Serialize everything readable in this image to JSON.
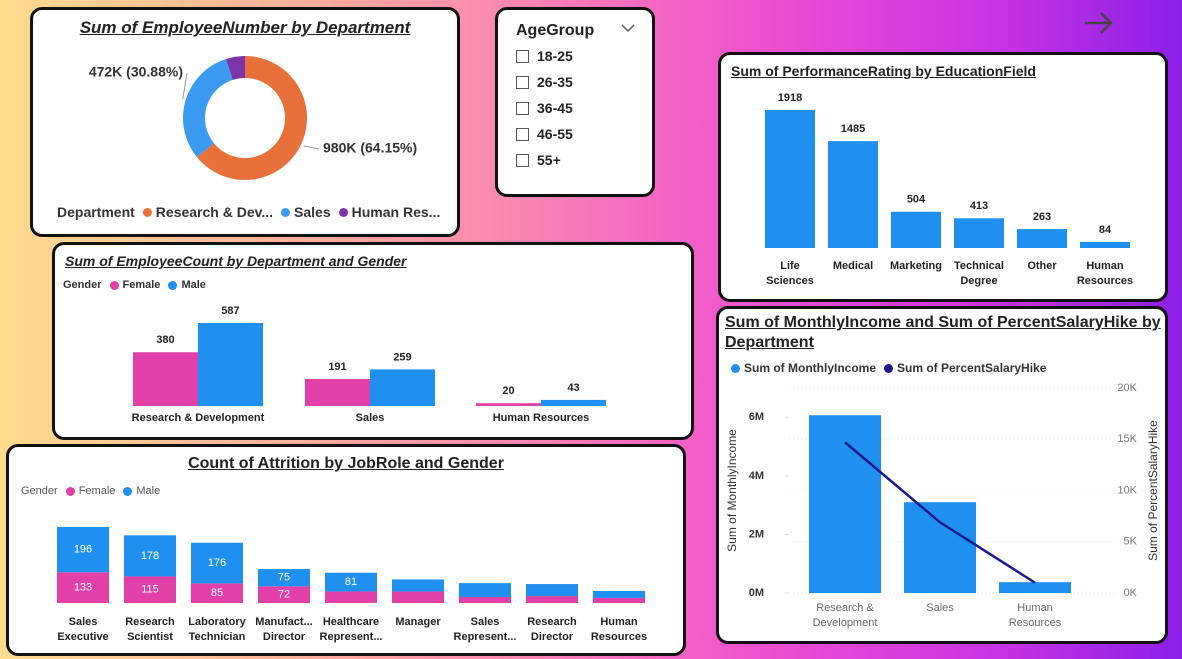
{
  "slicer": {
    "title": "AgeGroup",
    "items": [
      "18-25",
      "26-35",
      "36-45",
      "46-55",
      "55+"
    ]
  },
  "chart_data": [
    {
      "type": "pie",
      "donut": true,
      "title": "Sum of EmployeeNumber by Department",
      "legend_title": "Department",
      "categories": [
        "Research & Dev...",
        "Sales",
        "Human Res..."
      ],
      "values": [
        980000,
        472000,
        76000
      ],
      "value_labels": [
        "980K (64.15%)",
        "472K (30.88%)",
        null
      ],
      "colors": [
        "#e8703a",
        "#3a9bf0",
        "#7b35a8"
      ]
    },
    {
      "type": "bar",
      "title": "Sum of PerformanceRating by EducationField",
      "categories": [
        "Life Sciences",
        "Medical",
        "Marketing",
        "Technical Degree",
        "Other",
        "Human Resources"
      ],
      "values": [
        1918,
        1485,
        504,
        413,
        263,
        84
      ],
      "color": "#1f8ff0"
    },
    {
      "type": "bar",
      "title": "Sum of EmployeeCount by Department and Gender",
      "legend_title": "Gender",
      "categories": [
        "Research & Development",
        "Sales",
        "Human Resources"
      ],
      "series": [
        {
          "name": "Female",
          "color": "#e040a8",
          "values": [
            380,
            191,
            20
          ]
        },
        {
          "name": "Male",
          "color": "#1f8ff0",
          "values": [
            587,
            259,
            43
          ]
        }
      ]
    },
    {
      "type": "bar",
      "stacked": true,
      "title": "Count of Attrition by JobRole and Gender",
      "legend_title": "Gender",
      "categories": [
        "Sales Executive",
        "Research Scientist",
        "Laboratory Technician",
        "Manufact... Director",
        "Healthcare Represent...",
        "Manager",
        "Sales Represent...",
        "Research Director",
        "Human Resources"
      ],
      "series": [
        {
          "name": "Female",
          "color": "#e040a8",
          "values": [
            133,
            115,
            85,
            72,
            50,
            50,
            26,
            30,
            22
          ]
        },
        {
          "name": "Male",
          "color": "#1f8ff0",
          "values": [
            196,
            178,
            176,
            75,
            81,
            52,
            60,
            52,
            30
          ]
        }
      ]
    },
    {
      "type": "combo",
      "title": "Sum of MonthlyIncome and Sum of PercentSalaryHike by Department",
      "categories": [
        "Research & Development",
        "Sales",
        "Human Resources"
      ],
      "series": [
        {
          "name": "Sum of MonthlyIncome",
          "color": "#1f8ff0",
          "values": [
            6070000,
            3100000,
            370000
          ]
        },
        {
          "name": "Sum of PercentSalaryHike",
          "color": "#1a1a8c",
          "axis": "y2",
          "values": [
            14700,
            6900,
            1000
          ]
        }
      ],
      "ylabel": "Sum of MonthlyIncome",
      "y2label": "Sum of PercentSalaryHike",
      "ylim": [
        0,
        7000000
      ],
      "yticks": [
        {
          "value": 0,
          "label": "0M"
        },
        {
          "value": 2000000,
          "label": "2M"
        },
        {
          "value": 4000000,
          "label": "4M"
        },
        {
          "value": 6000000,
          "label": "6M"
        }
      ],
      "y2lim": [
        0,
        20000
      ],
      "y2ticks": [
        {
          "value": 0,
          "label": "0K"
        },
        {
          "value": 5000,
          "label": "5K"
        },
        {
          "value": 10000,
          "label": "10K"
        },
        {
          "value": 15000,
          "label": "15K"
        },
        {
          "value": 20000,
          "label": "20K"
        }
      ]
    }
  ]
}
